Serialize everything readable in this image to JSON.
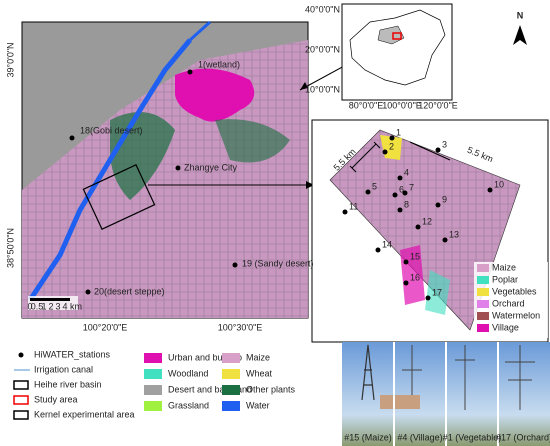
{
  "main_map": {
    "lat_labels": [
      "39°0'0\"N",
      "38°50'0\"N"
    ],
    "lon_labels": [
      "100°20'0\"E",
      "100°30'0\"E"
    ],
    "stations": [
      "1(wetland)",
      "18(Gobi desert)",
      "Zhangye City",
      "19 (Sandy desert)",
      "20(desert steppe)"
    ],
    "scale_labels": [
      "0",
      "0.5",
      "1",
      "2",
      "3",
      "4",
      "km"
    ]
  },
  "inset_map": {
    "lat_labels": [
      "40°0'0\"N",
      "20°0'0\"N",
      "10°0'0\"N"
    ],
    "lon_labels": [
      "80°0'0\"E",
      "100°0'0\"E",
      "120°0'0\"E"
    ],
    "north": "N"
  },
  "zoom_map": {
    "distance_labels": [
      "5.5 km",
      "5.5 km"
    ],
    "stations": [
      "1",
      "2",
      "3",
      "4",
      "5",
      "6",
      "7",
      "8",
      "9",
      "10",
      "11",
      "12",
      "13",
      "14",
      "15",
      "16",
      "17"
    ],
    "legend": [
      {
        "label": "Maize",
        "color": "#d8a0c8"
      },
      {
        "label": "Poplar",
        "color": "#40e0c0"
      },
      {
        "label": "Vegetables",
        "color": "#f0e040"
      },
      {
        "label": "Orchard",
        "color": "#e080e8"
      },
      {
        "label": "Watermelon",
        "color": "#a05050"
      },
      {
        "label": "Village",
        "color": "#e010b0"
      }
    ]
  },
  "legend": {
    "symbols": [
      "HiWATER_stations",
      "Irrigation canal",
      "Heihe river basin",
      "Study area",
      "Kernel experimental area"
    ],
    "classes": [
      {
        "label": "Urban and built-up",
        "color": "#e010b0"
      },
      {
        "label": "Woodland",
        "color": "#40e0c0"
      },
      {
        "label": "Desert and bare land",
        "color": "#a0a0a0"
      },
      {
        "label": "Grassland",
        "color": "#a0f040"
      },
      {
        "label": "Maize",
        "color": "#d8a0c8"
      },
      {
        "label": "Wheat",
        "color": "#f0e040"
      },
      {
        "label": "Other plants",
        "color": "#1a7040"
      },
      {
        "label": "Water",
        "color": "#2060f0"
      }
    ]
  },
  "photos": [
    "#15 (Maize)",
    "#4 (Village)",
    "#1 (Vegetable)",
    "#17 (Orchard)"
  ]
}
